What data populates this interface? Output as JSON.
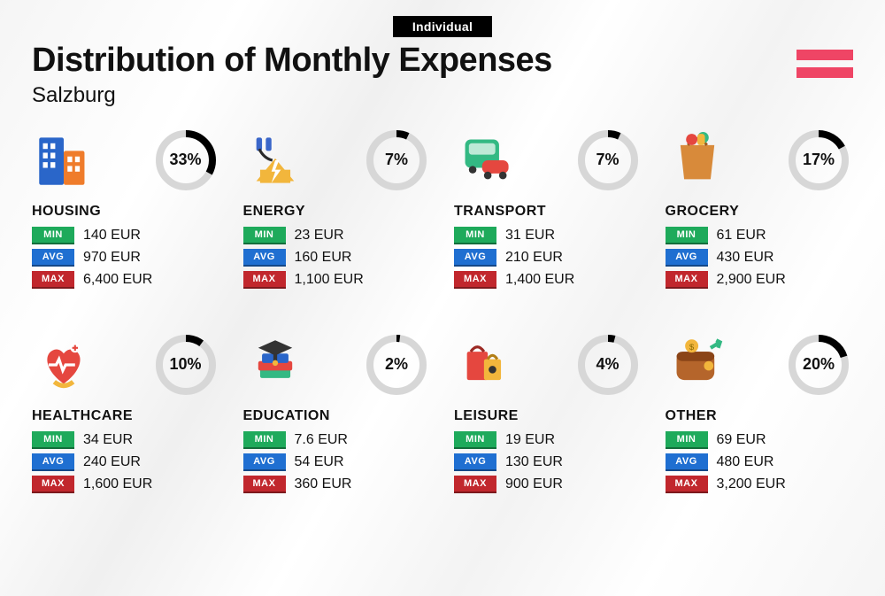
{
  "badge": "Individual",
  "title": "Distribution of Monthly Expenses",
  "subtitle": "Salzburg",
  "flag_color": "#ef4565",
  "donut": {
    "ring_bg": "#d7d7d7",
    "ring_fg": "#000000",
    "ring_width": 8,
    "radius": 30
  },
  "tags": {
    "min": {
      "label": "MIN",
      "color": "#1eaa5b"
    },
    "avg": {
      "label": "AVG",
      "color": "#1f6fd1"
    },
    "max": {
      "label": "MAX",
      "color": "#c1272d"
    }
  },
  "categories": [
    {
      "key": "housing",
      "name": "HOUSING",
      "percent": 33,
      "min": "140 EUR",
      "avg": "970 EUR",
      "max": "6,400 EUR"
    },
    {
      "key": "energy",
      "name": "ENERGY",
      "percent": 7,
      "min": "23 EUR",
      "avg": "160 EUR",
      "max": "1,100 EUR"
    },
    {
      "key": "transport",
      "name": "TRANSPORT",
      "percent": 7,
      "min": "31 EUR",
      "avg": "210 EUR",
      "max": "1,400 EUR"
    },
    {
      "key": "grocery",
      "name": "GROCERY",
      "percent": 17,
      "min": "61 EUR",
      "avg": "430 EUR",
      "max": "2,900 EUR"
    },
    {
      "key": "healthcare",
      "name": "HEALTHCARE",
      "percent": 10,
      "min": "34 EUR",
      "avg": "240 EUR",
      "max": "1,600 EUR"
    },
    {
      "key": "education",
      "name": "EDUCATION",
      "percent": 2,
      "min": "7.6 EUR",
      "avg": "54 EUR",
      "max": "360 EUR"
    },
    {
      "key": "leisure",
      "name": "LEISURE",
      "percent": 4,
      "min": "19 EUR",
      "avg": "130 EUR",
      "max": "900 EUR"
    },
    {
      "key": "other",
      "name": "OTHER",
      "percent": 20,
      "min": "69 EUR",
      "avg": "480 EUR",
      "max": "3,200 EUR"
    }
  ]
}
